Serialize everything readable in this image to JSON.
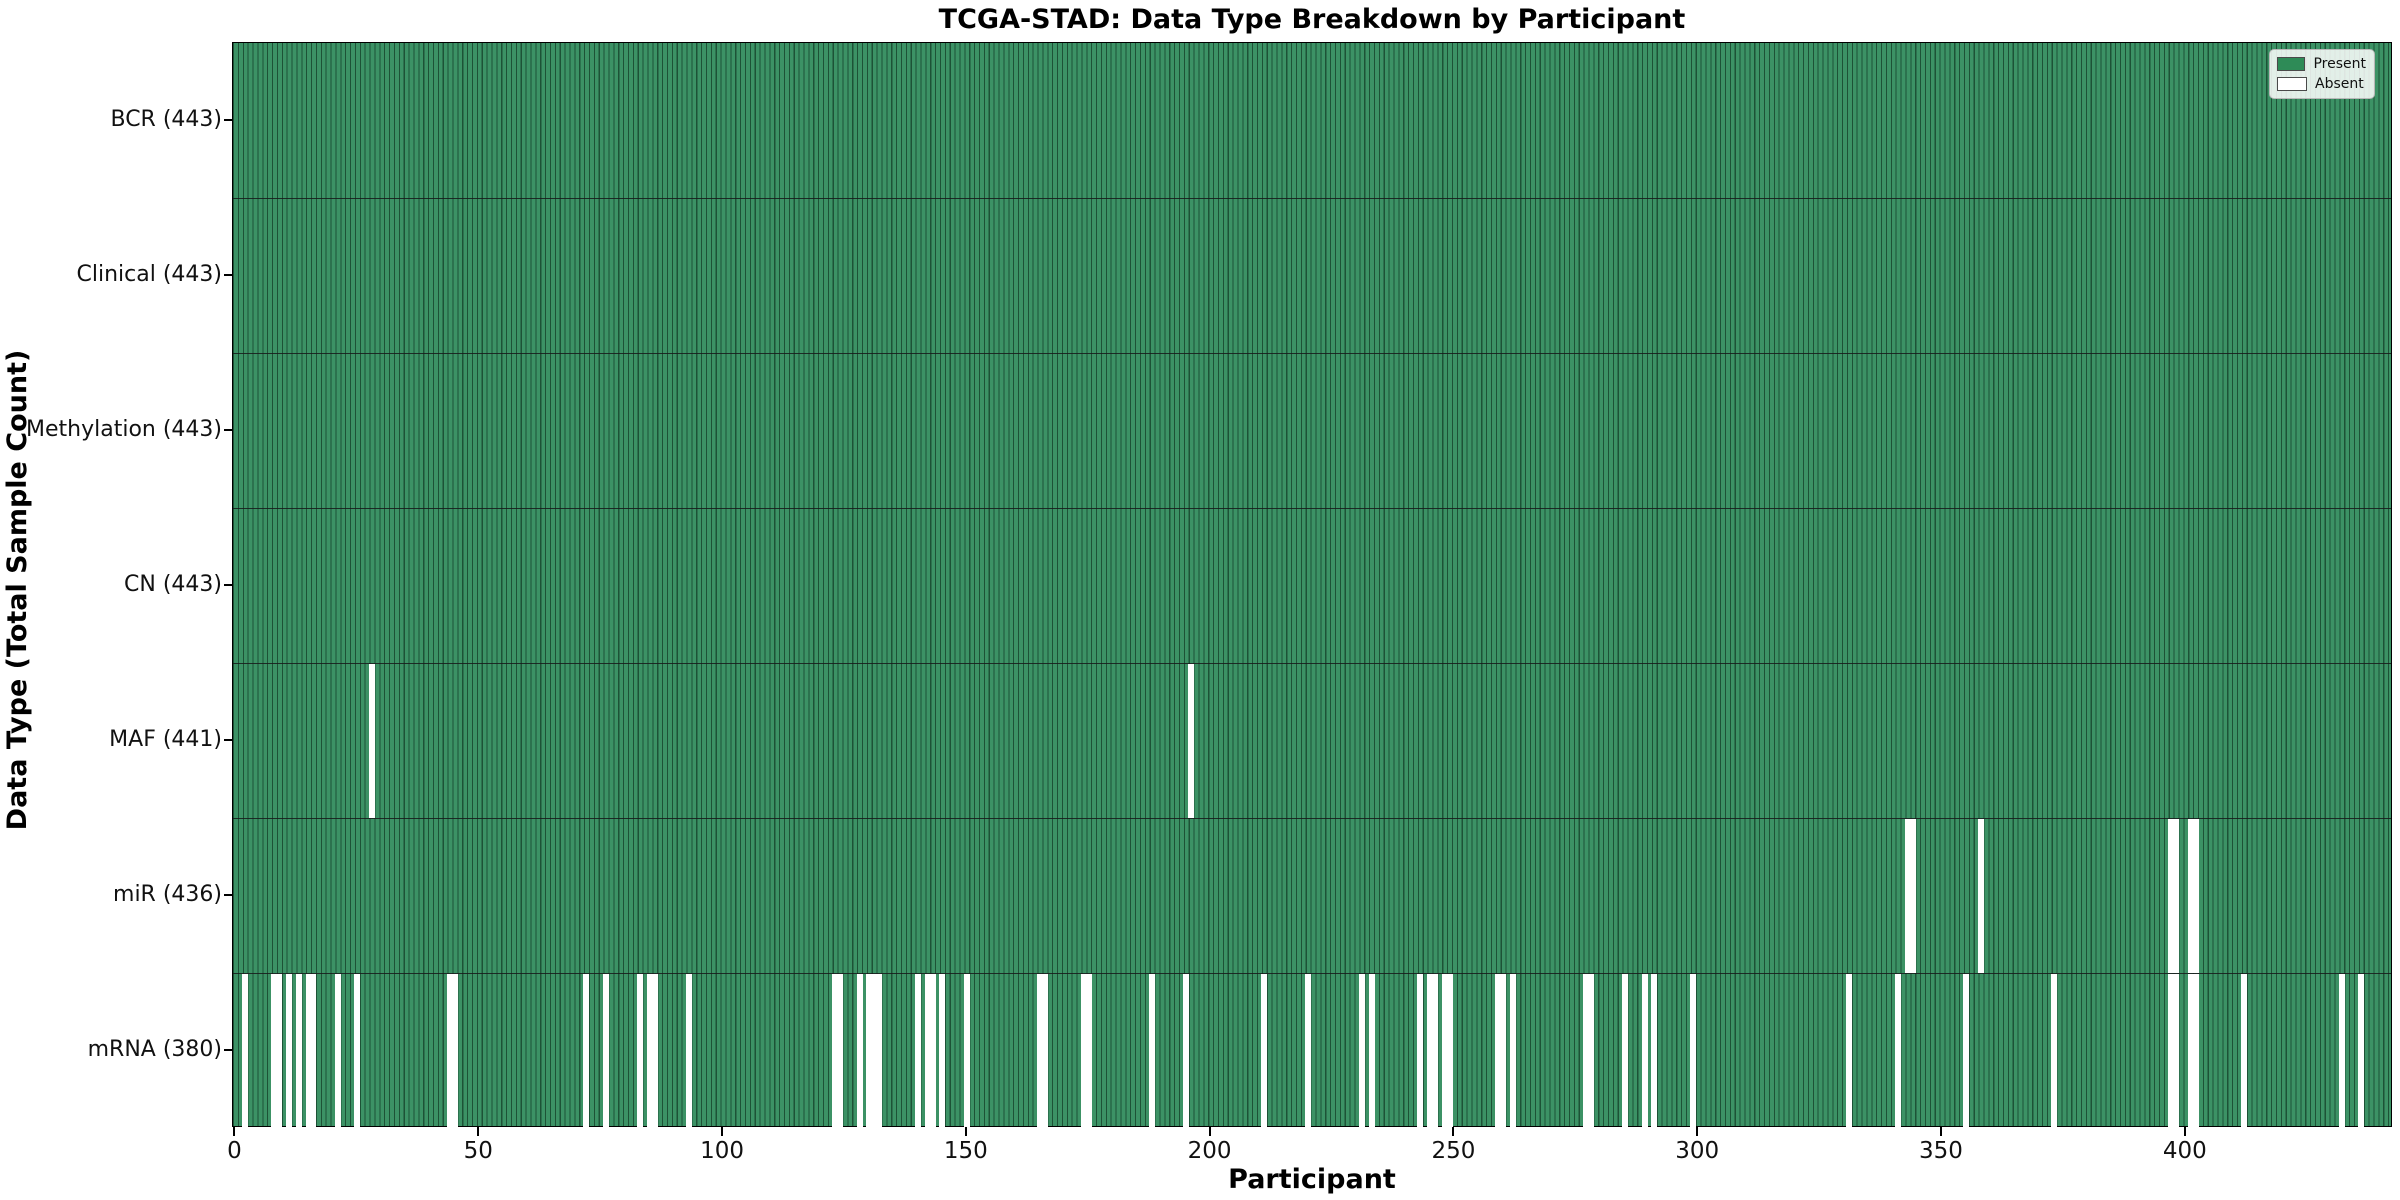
{
  "title": "TCGA-STAD: Data Type Breakdown by Participant",
  "xlabel": "Participant",
  "ylabel": "Data Type (Total Sample Count)",
  "colors": {
    "present": "#2e8b57",
    "present_fill": "#3c9265",
    "bar_edge": "#1d5236",
    "absent": "#ffffff",
    "row_separator": "#17191a"
  },
  "chart_data": {
    "type": "heatmap",
    "title": "TCGA-STAD: Data Type Breakdown by Participant",
    "xlabel": "Participant",
    "ylabel": "Data Type (Total Sample Count)",
    "total_participants": 443,
    "xlim": [
      -0.5,
      442.5
    ],
    "x_ticks": [
      0,
      50,
      100,
      150,
      200,
      250,
      300,
      350,
      400
    ],
    "grid": false,
    "legend_position": "upper right",
    "legend_entries": [
      {
        "label": "Present",
        "color": "#2e8b57"
      },
      {
        "label": "Absent",
        "color": "#ffffff"
      }
    ],
    "rows": [
      {
        "label": "BCR",
        "total": 443,
        "display": "BCR (443)",
        "absent": []
      },
      {
        "label": "Clinical",
        "total": 443,
        "display": "Clinical (443)",
        "absent": []
      },
      {
        "label": "Methylation",
        "total": 443,
        "display": "Methylation (443)",
        "absent": []
      },
      {
        "label": "CN",
        "total": 443,
        "display": "CN (443)",
        "absent": []
      },
      {
        "label": "MAF",
        "total": 441,
        "display": "MAF (441)",
        "absent": [
          28,
          196
        ]
      },
      {
        "label": "miR",
        "total": 436,
        "display": "miR (436)",
        "absent": [
          343,
          344,
          358,
          397,
          398,
          401,
          402
        ]
      },
      {
        "label": "mRNA",
        "total": 380,
        "display": "mRNA (380)",
        "absent": [
          2,
          8,
          9,
          11,
          13,
          15,
          16,
          21,
          25,
          44,
          45,
          72,
          76,
          83,
          85,
          86,
          93,
          123,
          124,
          128,
          130,
          131,
          132,
          140,
          142,
          143,
          145,
          150,
          165,
          166,
          174,
          175,
          188,
          195,
          211,
          220,
          231,
          233,
          243,
          245,
          246,
          248,
          249,
          259,
          260,
          262,
          277,
          278,
          285,
          289,
          291,
          299,
          331,
          341,
          355,
          373,
          397,
          398,
          401,
          402,
          412,
          432,
          436
        ]
      }
    ]
  }
}
